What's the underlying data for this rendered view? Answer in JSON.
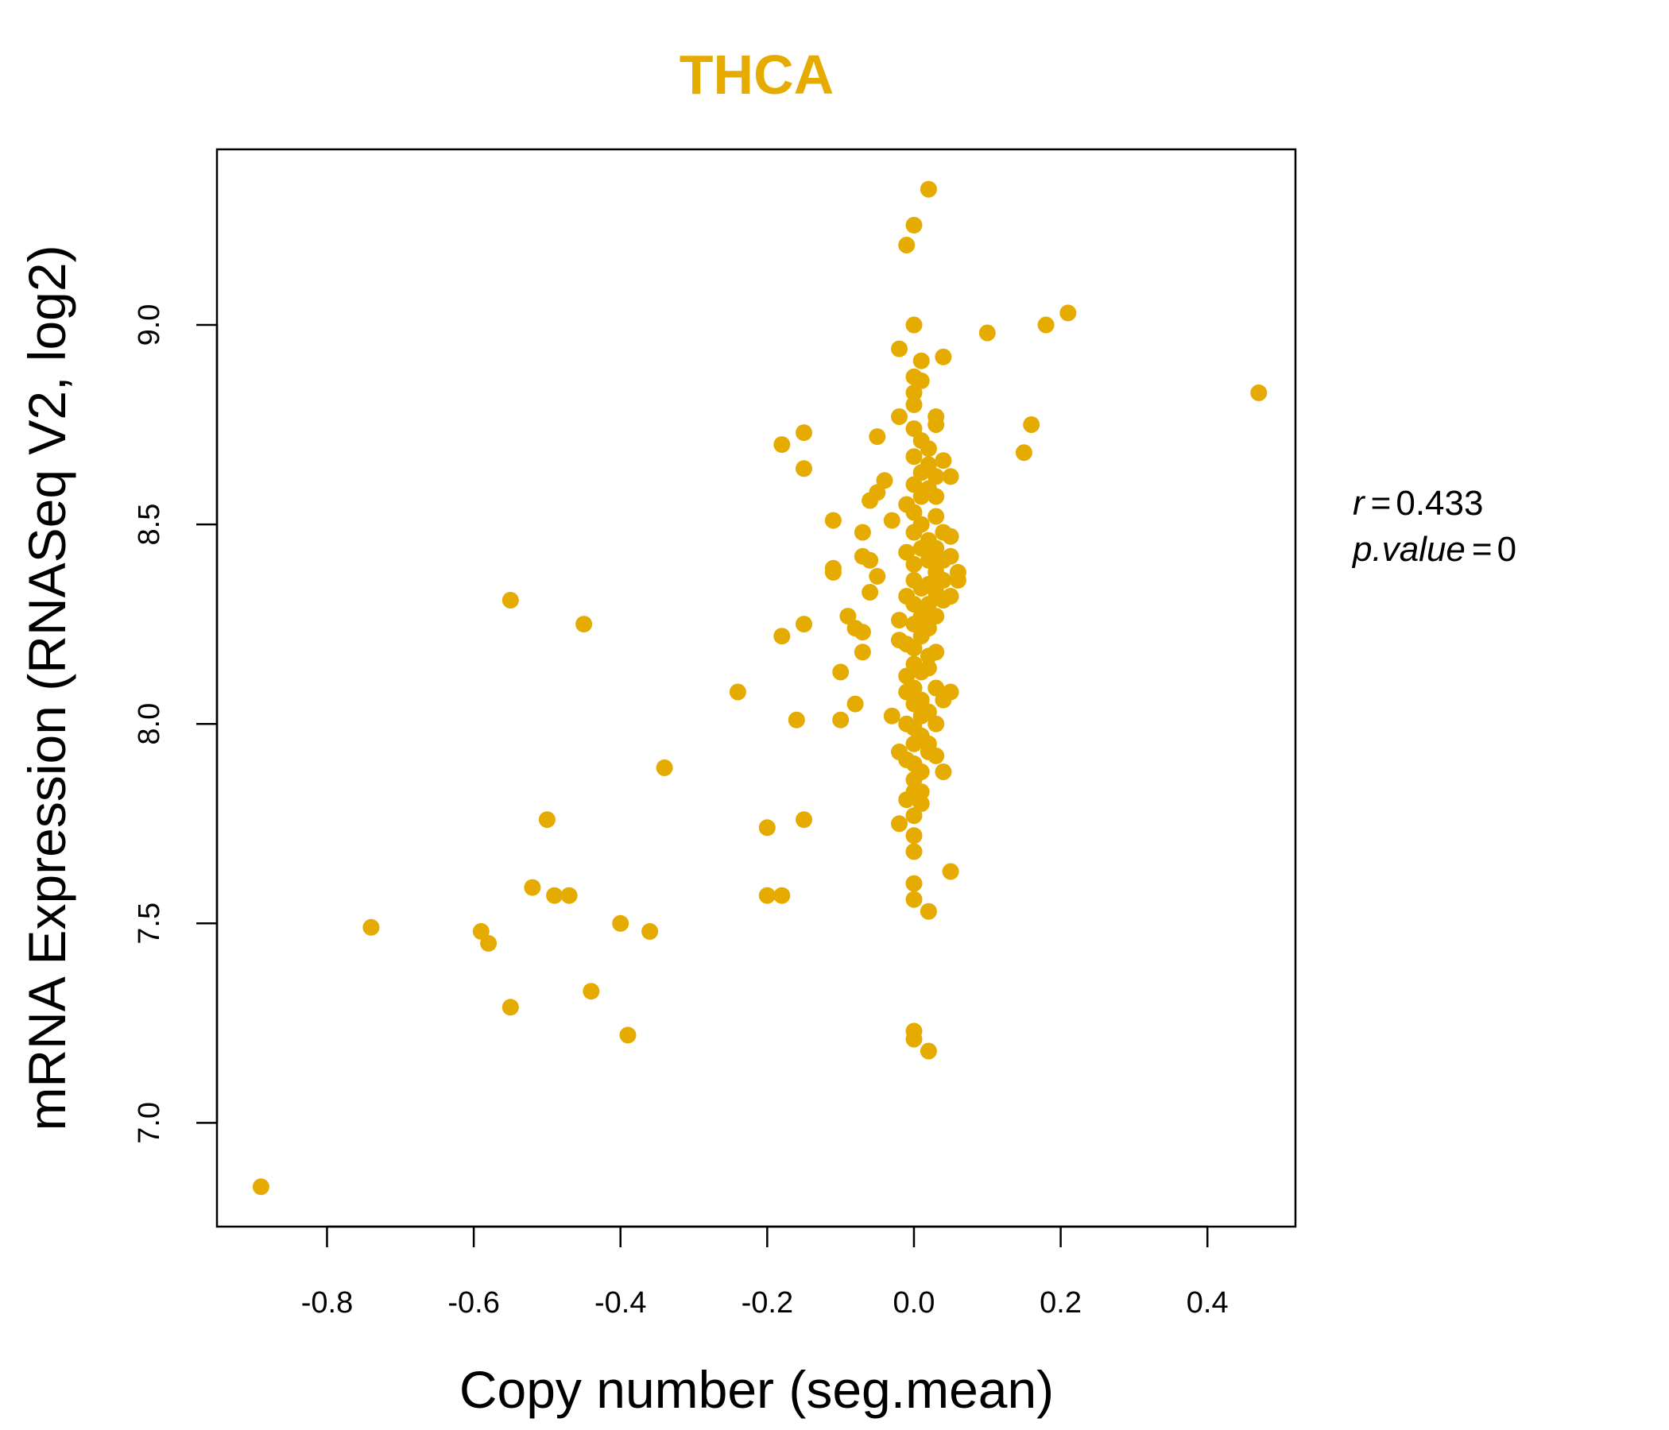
{
  "chart_data": {
    "type": "scatter",
    "title": "THCA",
    "xlabel": "Copy number (seg.mean)",
    "ylabel": "mRNA Expression (RNASeq V2, log2)",
    "xlim": [
      -0.95,
      0.52
    ],
    "ylim": [
      6.74,
      9.44
    ],
    "xticks": [
      -0.8,
      -0.6,
      -0.4,
      -0.2,
      0.0,
      0.2,
      0.4
    ],
    "xtick_labels": [
      "-0.8",
      "-0.6",
      "-0.4",
      "-0.2",
      "0.0",
      "0.2",
      "0.4"
    ],
    "yticks": [
      7.0,
      7.5,
      8.0,
      8.5,
      9.0
    ],
    "ytick_labels": [
      "7.0",
      "7.5",
      "8.0",
      "8.5",
      "9.0"
    ],
    "grid": false,
    "legend": "none",
    "color": "#E5AB00",
    "stats": {
      "r_label": "r",
      "r_value": "0.433",
      "p_label": "p.value",
      "p_value": "0"
    },
    "points": [
      [
        -0.89,
        6.84
      ],
      [
        -0.74,
        7.49
      ],
      [
        -0.59,
        7.48
      ],
      [
        -0.58,
        7.45
      ],
      [
        -0.55,
        8.31
      ],
      [
        -0.55,
        7.29
      ],
      [
        -0.52,
        7.59
      ],
      [
        -0.5,
        7.76
      ],
      [
        -0.49,
        7.57
      ],
      [
        -0.47,
        7.57
      ],
      [
        -0.45,
        8.25
      ],
      [
        -0.44,
        7.33
      ],
      [
        -0.4,
        7.5
      ],
      [
        -0.39,
        7.22
      ],
      [
        -0.36,
        7.48
      ],
      [
        -0.34,
        7.89
      ],
      [
        -0.24,
        8.08
      ],
      [
        -0.2,
        7.74
      ],
      [
        -0.2,
        7.57
      ],
      [
        -0.18,
        8.7
      ],
      [
        -0.18,
        8.22
      ],
      [
        -0.18,
        7.57
      ],
      [
        -0.16,
        8.01
      ],
      [
        -0.15,
        8.73
      ],
      [
        -0.15,
        8.64
      ],
      [
        -0.15,
        8.25
      ],
      [
        -0.15,
        7.76
      ],
      [
        -0.11,
        8.51
      ],
      [
        -0.11,
        8.39
      ],
      [
        -0.11,
        8.38
      ],
      [
        -0.1,
        8.13
      ],
      [
        -0.1,
        8.01
      ],
      [
        -0.09,
        8.27
      ],
      [
        -0.08,
        8.05
      ],
      [
        -0.08,
        8.24
      ],
      [
        -0.07,
        8.48
      ],
      [
        -0.07,
        8.42
      ],
      [
        -0.07,
        8.18
      ],
      [
        -0.07,
        8.23
      ],
      [
        -0.06,
        8.56
      ],
      [
        -0.06,
        8.33
      ],
      [
        -0.06,
        8.41
      ],
      [
        -0.05,
        8.58
      ],
      [
        -0.05,
        8.37
      ],
      [
        -0.05,
        8.72
      ],
      [
        -0.04,
        8.61
      ],
      [
        -0.03,
        8.51
      ],
      [
        -0.03,
        8.02
      ],
      [
        -0.02,
        8.26
      ],
      [
        -0.02,
        8.21
      ],
      [
        -0.02,
        7.93
      ],
      [
        -0.02,
        7.75
      ],
      [
        -0.02,
        8.77
      ],
      [
        -0.02,
        8.94
      ],
      [
        -0.01,
        9.2
      ],
      [
        -0.01,
        8.55
      ],
      [
        -0.01,
        8.43
      ],
      [
        -0.01,
        8.32
      ],
      [
        -0.01,
        8.2
      ],
      [
        -0.01,
        8.12
      ],
      [
        -0.01,
        8.08
      ],
      [
        -0.01,
        8.0
      ],
      [
        -0.01,
        7.91
      ],
      [
        -0.01,
        7.81
      ],
      [
        0.0,
        9.25
      ],
      [
        0.0,
        9.0
      ],
      [
        0.0,
        8.74
      ],
      [
        0.0,
        8.6
      ],
      [
        0.0,
        8.48
      ],
      [
        0.0,
        8.36
      ],
      [
        0.0,
        8.25
      ],
      [
        0.0,
        8.15
      ],
      [
        0.0,
        8.05
      ],
      [
        0.0,
        7.95
      ],
      [
        0.0,
        7.86
      ],
      [
        0.0,
        7.77
      ],
      [
        0.0,
        7.6
      ],
      [
        0.0,
        7.21
      ],
      [
        0.0,
        8.83
      ],
      [
        0.0,
        8.67
      ],
      [
        0.0,
        8.53
      ],
      [
        0.0,
        8.4
      ],
      [
        0.0,
        8.3
      ],
      [
        0.0,
        8.19
      ],
      [
        0.0,
        8.09
      ],
      [
        0.0,
        7.99
      ],
      [
        0.0,
        7.9
      ],
      [
        0.0,
        7.83
      ],
      [
        0.0,
        8.87
      ],
      [
        0.0,
        8.8
      ],
      [
        0.0,
        7.72
      ],
      [
        0.0,
        7.68
      ],
      [
        0.0,
        7.56
      ],
      [
        0.0,
        7.23
      ],
      [
        0.01,
        8.71
      ],
      [
        0.01,
        8.63
      ],
      [
        0.01,
        8.57
      ],
      [
        0.01,
        8.5
      ],
      [
        0.01,
        8.44
      ],
      [
        0.01,
        8.34
      ],
      [
        0.01,
        8.27
      ],
      [
        0.01,
        8.22
      ],
      [
        0.01,
        8.13
      ],
      [
        0.01,
        8.06
      ],
      [
        0.01,
        8.02
      ],
      [
        0.01,
        7.97
      ],
      [
        0.01,
        7.88
      ],
      [
        0.01,
        7.8
      ],
      [
        0.01,
        8.91
      ],
      [
        0.01,
        7.83
      ],
      [
        0.01,
        8.86
      ],
      [
        0.02,
        9.34
      ],
      [
        0.02,
        8.69
      ],
      [
        0.02,
        8.59
      ],
      [
        0.02,
        8.46
      ],
      [
        0.02,
        8.35
      ],
      [
        0.02,
        8.24
      ],
      [
        0.02,
        8.14
      ],
      [
        0.02,
        8.03
      ],
      [
        0.02,
        7.93
      ],
      [
        0.02,
        7.18
      ],
      [
        0.02,
        7.53
      ],
      [
        0.02,
        8.65
      ],
      [
        0.02,
        8.41
      ],
      [
        0.02,
        8.3
      ],
      [
        0.02,
        8.17
      ],
      [
        0.02,
        7.95
      ],
      [
        0.03,
        8.75
      ],
      [
        0.03,
        8.77
      ],
      [
        0.03,
        8.62
      ],
      [
        0.03,
        8.52
      ],
      [
        0.03,
        8.38
      ],
      [
        0.03,
        8.27
      ],
      [
        0.03,
        8.18
      ],
      [
        0.03,
        8.09
      ],
      [
        0.03,
        8.0
      ],
      [
        0.03,
        7.92
      ],
      [
        0.03,
        8.44
      ],
      [
        0.03,
        8.33
      ],
      [
        0.03,
        8.57
      ],
      [
        0.04,
        8.92
      ],
      [
        0.04,
        8.48
      ],
      [
        0.04,
        8.41
      ],
      [
        0.04,
        8.36
      ],
      [
        0.04,
        8.31
      ],
      [
        0.04,
        8.66
      ],
      [
        0.04,
        8.06
      ],
      [
        0.04,
        7.88
      ],
      [
        0.05,
        8.62
      ],
      [
        0.05,
        8.47
      ],
      [
        0.05,
        8.42
      ],
      [
        0.05,
        8.32
      ],
      [
        0.05,
        8.08
      ],
      [
        0.06,
        8.38
      ],
      [
        0.06,
        8.36
      ],
      [
        0.05,
        7.63
      ],
      [
        0.1,
        8.98
      ],
      [
        0.15,
        8.68
      ],
      [
        0.16,
        8.75
      ],
      [
        0.18,
        9.0
      ],
      [
        0.21,
        9.03
      ],
      [
        0.47,
        8.83
      ]
    ]
  }
}
